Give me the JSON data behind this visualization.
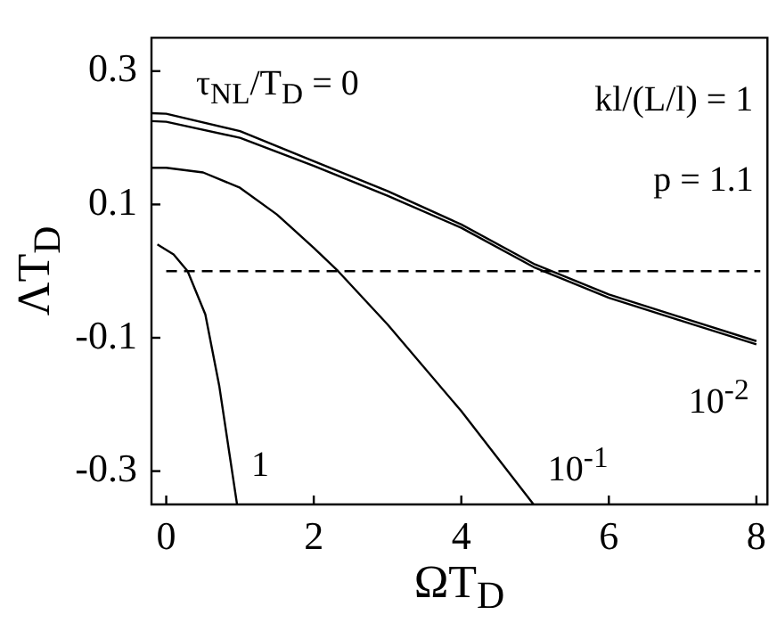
{
  "chart_data": {
    "type": "line",
    "xlabel": "ΩT$_{D}$",
    "ylabel": "ΛT$_{D}$",
    "xlim": [
      -0.2,
      8.15
    ],
    "ylim": [
      -0.35,
      0.35
    ],
    "xticks": [
      0,
      2,
      4,
      6,
      8
    ],
    "yticks": [
      0.3,
      0.1,
      -0.1,
      -0.3
    ],
    "grid": false,
    "legend": false,
    "marker": "none",
    "line_style": "solid",
    "series": [
      {
        "color": "#000000",
        "x": [
          -0.2,
          0,
          1,
          2,
          3,
          4,
          5,
          6,
          7,
          8
        ],
        "values": [
          0.237,
          0.236,
          0.21,
          0.165,
          0.12,
          0.07,
          0.01,
          -0.035,
          -0.07,
          -0.105
        ]
      },
      {
        "name": "10$^{-2}$",
        "color": "#000000",
        "x": [
          -0.2,
          0,
          1,
          2,
          3,
          4,
          5,
          6,
          7,
          8
        ],
        "values": [
          0.225,
          0.224,
          0.2,
          0.158,
          0.113,
          0.065,
          0.005,
          -0.04,
          -0.075,
          -0.11
        ]
      },
      {
        "name": "10$^{-1}$",
        "color": "#000000",
        "x": [
          -0.2,
          0,
          0.5,
          1,
          1.5,
          2,
          2.33,
          3,
          4,
          4.98
        ],
        "values": [
          0.155,
          0.155,
          0.148,
          0.125,
          0.085,
          0.035,
          0,
          -0.08,
          -0.21,
          -0.35
        ]
      },
      {
        "name": "1",
        "color": "#000000",
        "x": [
          -0.12,
          0.1,
          0.29,
          0.53,
          0.72,
          0.96
        ],
        "values": [
          0.04,
          0.025,
          0,
          -0.065,
          -0.173,
          -0.35
        ]
      }
    ],
    "ref_lines": [
      {
        "axis": "y",
        "value": 0,
        "line_style": "dashed",
        "color": "#000000"
      }
    ],
    "annotations": [
      "τ$_{NL}$/T$_{D}$ = 0",
      "kl/(L/l) = 1",
      "p = 1.1"
    ]
  }
}
